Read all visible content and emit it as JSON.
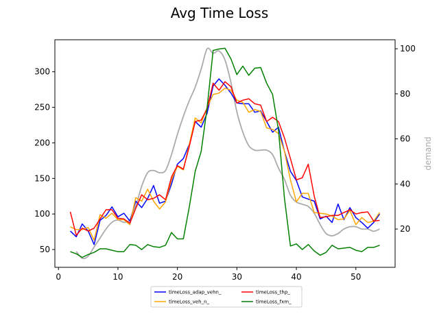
{
  "chart_data": {
    "type": "line",
    "title": "Avg Time Loss",
    "xlabel": "",
    "ylabel": "",
    "y2label": "demand",
    "xlim": [
      -0.6,
      56.6
    ],
    "ylim": [
      25,
      345
    ],
    "y2lim": [
      3,
      104
    ],
    "xticks": [
      0,
      10,
      20,
      30,
      40,
      50
    ],
    "yticks": [
      50,
      100,
      150,
      200,
      250,
      300
    ],
    "y2ticks": [
      20,
      40,
      60,
      80,
      100
    ],
    "grid": false,
    "legend_position": "bottom-center",
    "series": [
      {
        "name": "timeLoss_adap_vehn_",
        "color": "#0000ff",
        "axis": "left",
        "x": [
          2,
          3,
          4,
          5,
          6,
          7,
          8,
          9,
          10,
          11,
          12,
          13,
          14,
          15,
          16,
          17,
          18,
          19,
          20,
          21,
          22,
          23,
          24,
          25,
          26,
          27,
          28,
          29,
          30,
          31,
          32,
          33,
          34,
          35,
          36,
          37,
          38,
          39,
          40,
          41,
          42,
          43,
          44,
          45,
          46,
          47,
          48,
          49,
          50,
          51,
          52,
          53,
          54
        ],
        "y": [
          76,
          68,
          86,
          76,
          57,
          91,
          98,
          110,
          96,
          101,
          90,
          118,
          109,
          122,
          140,
          115,
          118,
          142,
          170,
          178,
          198,
          230,
          222,
          242,
          280,
          290,
          281,
          270,
          256,
          255,
          255,
          243,
          245,
          230,
          215,
          222,
          188,
          160,
          147,
          124,
          121,
          118,
          93,
          97,
          88,
          114,
          92,
          109,
          95,
          88,
          80,
          88,
          100
        ]
      },
      {
        "name": "timeLoss_veh_n_",
        "color": "#ffa500",
        "axis": "left",
        "x": [
          2,
          3,
          4,
          5,
          6,
          7,
          8,
          9,
          10,
          11,
          12,
          13,
          14,
          15,
          16,
          17,
          18,
          19,
          20,
          21,
          22,
          23,
          24,
          25,
          26,
          27,
          28,
          29,
          30,
          31,
          32,
          33,
          34,
          35,
          36,
          37,
          38,
          39,
          40,
          41,
          42,
          43,
          44,
          45,
          46,
          47,
          48,
          49,
          50,
          51,
          52,
          53,
          54
        ],
        "y": [
          82,
          78,
          78,
          81,
          63,
          99,
          94,
          101,
          92,
          92,
          85,
          123,
          118,
          135,
          118,
          107,
          117,
          148,
          167,
          162,
          198,
          235,
          228,
          250,
          268,
          270,
          277,
          274,
          260,
          257,
          243,
          247,
          244,
          221,
          219,
          213,
          188,
          148,
          117,
          129,
          129,
          102,
          101,
          100,
          97,
          92,
          93,
          105,
          85,
          95,
          88,
          90,
          102
        ]
      },
      {
        "name": "timeLoss_thp_",
        "color": "#ff0000",
        "axis": "left",
        "x": [
          2,
          3,
          4,
          5,
          6,
          7,
          8,
          9,
          10,
          11,
          12,
          13,
          14,
          15,
          16,
          17,
          18,
          19,
          20,
          21,
          22,
          23,
          24,
          25,
          26,
          27,
          28,
          29,
          30,
          31,
          32,
          33,
          34,
          35,
          36,
          37,
          38,
          39,
          40,
          41,
          42,
          43,
          44,
          45,
          46,
          47,
          48,
          49,
          50,
          51,
          52,
          53,
          54
        ],
        "y": [
          103,
          70,
          80,
          76,
          80,
          93,
          106,
          106,
          94,
          93,
          87,
          108,
          127,
          120,
          122,
          127,
          120,
          152,
          168,
          163,
          195,
          230,
          232,
          248,
          284,
          274,
          286,
          279,
          256,
          260,
          262,
          255,
          253,
          230,
          236,
          230,
          207,
          178,
          148,
          151,
          170,
          125,
          95,
          96,
          98,
          98,
          102,
          106,
          100,
          102,
          103,
          90,
          91
        ]
      },
      {
        "name": "timeLoss_fxm_",
        "color": "#008000",
        "axis": "left",
        "x": [
          2,
          3,
          4,
          5,
          6,
          7,
          8,
          9,
          10,
          11,
          12,
          13,
          14,
          15,
          16,
          17,
          18,
          19,
          20,
          21,
          22,
          23,
          24,
          25,
          26,
          27,
          28,
          29,
          30,
          31,
          32,
          33,
          34,
          35,
          36,
          37,
          38,
          39,
          40,
          41,
          42,
          43,
          44,
          45,
          46,
          47,
          48,
          49,
          50,
          51,
          52,
          53,
          54
        ],
        "y": [
          47,
          44,
          39,
          43,
          46,
          51,
          51,
          49,
          47,
          47,
          57,
          56,
          50,
          57,
          54,
          53,
          56,
          74,
          65,
          65,
          110,
          160,
          188,
          250,
          330,
          332,
          333,
          318,
          296,
          308,
          295,
          305,
          306,
          284,
          268,
          218,
          122,
          55,
          58,
          50,
          57,
          48,
          42,
          46,
          56,
          51,
          52,
          53,
          49,
          47,
          53,
          53,
          56
        ]
      },
      {
        "name": "demand",
        "color": "#aaaaaa",
        "axis": "right",
        "show_in_legend": false,
        "x": [
          3,
          4,
          5,
          6,
          7,
          8,
          9,
          10,
          11,
          12,
          13,
          14,
          15,
          16,
          17,
          18,
          19,
          20,
          21,
          22,
          23,
          24,
          25,
          26,
          27,
          28,
          29,
          30,
          31,
          32,
          33,
          34,
          35,
          36,
          37,
          38,
          39,
          40,
          41,
          42,
          43,
          44,
          45,
          46,
          47,
          48,
          49,
          50,
          51,
          52,
          53,
          54
        ],
        "y": [
          10,
          7,
          8,
          12,
          16,
          20,
          23,
          24,
          23,
          24,
          30,
          39,
          45,
          46,
          45,
          46,
          53,
          62,
          70,
          77,
          83,
          91,
          100,
          98,
          99,
          95,
          85,
          72,
          63,
          57,
          55,
          55,
          55,
          53,
          47,
          42,
          35,
          32,
          31,
          30,
          27,
          22,
          18,
          17,
          18,
          20,
          21,
          21,
          20,
          20,
          19,
          20
        ]
      }
    ]
  }
}
